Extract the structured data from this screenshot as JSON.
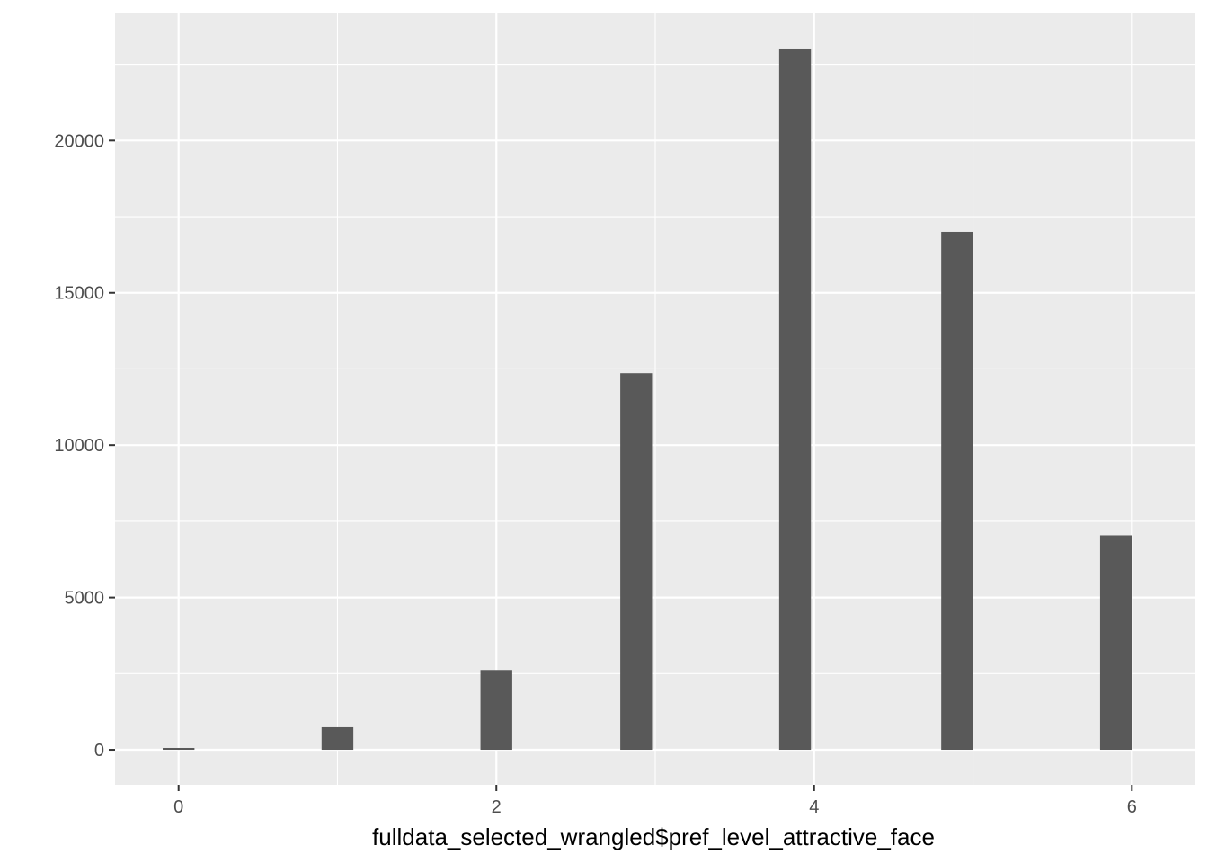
{
  "chart_data": {
    "type": "bar",
    "title": "",
    "xlabel": "fulldata_selected_wrangled$pref_level_attractive_face",
    "ylabel": "",
    "x": [
      0,
      1,
      2,
      2.88,
      3.88,
      4.9,
      5.9
    ],
    "values": [
      60,
      740,
      2620,
      12360,
      23020,
      17000,
      7040
    ],
    "bar_width": 0.2,
    "xlim": [
      -0.4,
      6.4
    ],
    "ylim": [
      -1150,
      24200
    ],
    "x_ticks": [
      0,
      2,
      4,
      6
    ],
    "x_tick_labels": [
      "0",
      "2",
      "4",
      "6"
    ],
    "x_minor_ticks": [
      1,
      3,
      5
    ],
    "y_ticks": [
      0,
      5000,
      10000,
      15000,
      20000
    ],
    "y_tick_labels": [
      "0",
      "5000",
      "10000",
      "15000",
      "20000"
    ],
    "y_minor_ticks": [
      2500,
      7500,
      12500,
      17500,
      22500
    ],
    "grid": true,
    "legend": "none",
    "colors": {
      "panel_bg": "#ebebeb",
      "grid": "#ffffff",
      "bar_fill": "#595959",
      "tick_text": "#4d4d4d",
      "tick_mark": "#333333",
      "axis_title": "#000000"
    }
  }
}
